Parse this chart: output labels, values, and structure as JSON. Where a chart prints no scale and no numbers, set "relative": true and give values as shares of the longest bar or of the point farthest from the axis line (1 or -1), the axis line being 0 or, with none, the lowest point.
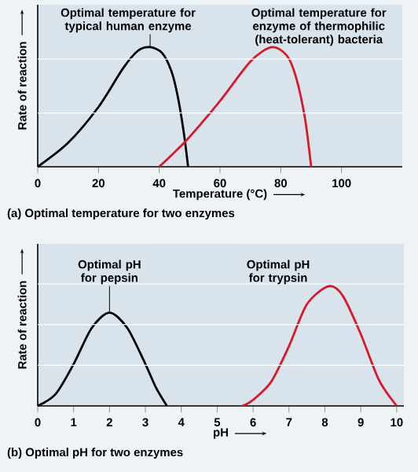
{
  "chart_data": [
    {
      "type": "line",
      "title": "(a) Optimal temperature for two enzymes",
      "xlabel": "Temperature (°C)",
      "ylabel": "Rate of reaction",
      "relative": true,
      "xlim": [
        0,
        120
      ],
      "ref_lines": [
        {
          "axis": "y",
          "value": 0.45,
          "color": "#ffffff"
        },
        {
          "axis": "y",
          "value": 0.9,
          "color": "#ffffff"
        }
      ],
      "xticks": [
        0,
        20,
        40,
        60,
        80,
        100
      ],
      "series": [
        {
          "color": "#000000",
          "x": [
            0,
            10,
            20,
            28,
            33,
            37,
            41,
            44,
            46,
            48,
            49.5
          ],
          "values": [
            0,
            0.2,
            0.5,
            0.82,
            0.97,
            1,
            0.95,
            0.8,
            0.6,
            0.3,
            0
          ]
        },
        {
          "color": "#d7192b",
          "x": [
            40,
            45,
            50,
            60,
            70,
            77,
            82,
            85,
            88,
            90
          ],
          "values": [
            0,
            0.12,
            0.25,
            0.55,
            0.88,
            1,
            0.93,
            0.75,
            0.4,
            0
          ]
        }
      ],
      "annotations": [
        {
          "text": "Optimal temperature for typical human enzyme",
          "x": 37,
          "y": 1
        },
        {
          "text": "Optimal temperature for enzyme of thermophilic (heat-tolerant) bacteria",
          "x": 77,
          "y": 1
        }
      ]
    },
    {
      "type": "line",
      "title": "(b) Optimal pH for two enzymes",
      "xlabel": "pH",
      "ylabel": "Rate of reaction",
      "relative": true,
      "xlim": [
        0,
        10.2
      ],
      "ref_lines": [
        {
          "axis": "y",
          "value": 0.34,
          "color": "#ffffff"
        },
        {
          "axis": "y",
          "value": 0.68,
          "color": "#ffffff"
        },
        {
          "axis": "y",
          "value": 1.02,
          "color": "#ffffff"
        }
      ],
      "xticks": [
        0,
        1,
        2,
        3,
        4,
        5,
        6,
        7,
        8,
        9,
        10
      ],
      "series": [
        {
          "color": "#000000",
          "x": [
            0,
            0.5,
            1,
            1.5,
            2,
            2.5,
            3,
            3.3,
            3.6
          ],
          "values": [
            0,
            0.1,
            0.35,
            0.65,
            0.78,
            0.65,
            0.35,
            0.15,
            0
          ]
        },
        {
          "color": "#d7192b",
          "x": [
            5.7,
            6,
            6.5,
            7,
            7.5,
            8.1,
            8.5,
            9,
            9.5,
            10
          ],
          "values": [
            0,
            0.05,
            0.2,
            0.5,
            0.85,
            1,
            0.92,
            0.6,
            0.22,
            0
          ]
        }
      ],
      "annotations": [
        {
          "text": "Optimal pH for pepsin",
          "x": 2,
          "y": 0.78
        },
        {
          "text": "Optimal pH for trypsin",
          "x": 8.1,
          "y": 1
        }
      ]
    }
  ]
}
